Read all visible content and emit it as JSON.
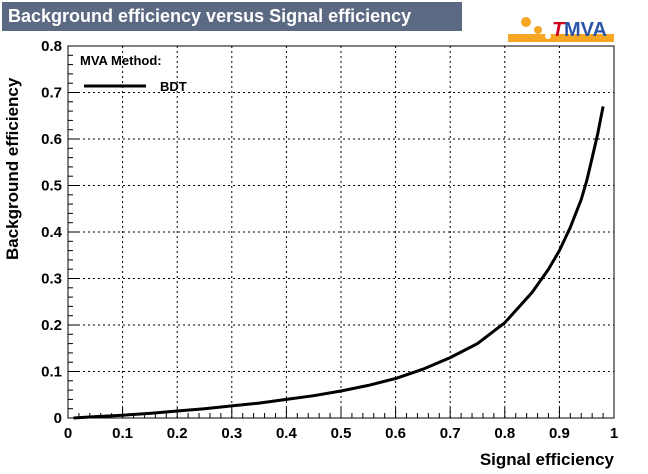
{
  "title": "Background efficiency versus Signal efficiency",
  "logo": {
    "text_t": "T",
    "text_mva": "MVA",
    "icon": "tmva-logo-icon"
  },
  "colors": {
    "title_bg": "#5b6a82",
    "logo_orange": "#f5a623",
    "logo_red": "#d0021b",
    "logo_blue": "#2a55a8"
  },
  "legend": {
    "header": "MVA Method:",
    "entry": "BDT"
  },
  "chart_data": {
    "type": "line",
    "title": "Background efficiency versus Signal efficiency",
    "xlabel": "Signal efficiency",
    "ylabel": "Background efficiency",
    "xlim": [
      0,
      1
    ],
    "ylim": [
      0,
      0.8
    ],
    "grid": true,
    "legend_position": "top-left",
    "xticks": [
      "0",
      "0.1",
      "0.2",
      "0.3",
      "0.4",
      "0.5",
      "0.6",
      "0.7",
      "0.8",
      "0.9",
      "1"
    ],
    "yticks": [
      "0",
      "0.1",
      "0.2",
      "0.3",
      "0.4",
      "0.5",
      "0.6",
      "0.7",
      "0.8"
    ],
    "series": [
      {
        "name": "BDT",
        "x": [
          0.01,
          0.05,
          0.1,
          0.15,
          0.2,
          0.25,
          0.3,
          0.35,
          0.4,
          0.45,
          0.5,
          0.55,
          0.6,
          0.65,
          0.7,
          0.75,
          0.8,
          0.85,
          0.88,
          0.9,
          0.92,
          0.94,
          0.95,
          0.96,
          0.97,
          0.98
        ],
        "y": [
          0.0,
          0.003,
          0.006,
          0.01,
          0.015,
          0.02,
          0.026,
          0.032,
          0.04,
          0.048,
          0.058,
          0.07,
          0.085,
          0.105,
          0.13,
          0.16,
          0.205,
          0.27,
          0.32,
          0.36,
          0.41,
          0.47,
          0.51,
          0.56,
          0.61,
          0.67
        ]
      }
    ]
  }
}
